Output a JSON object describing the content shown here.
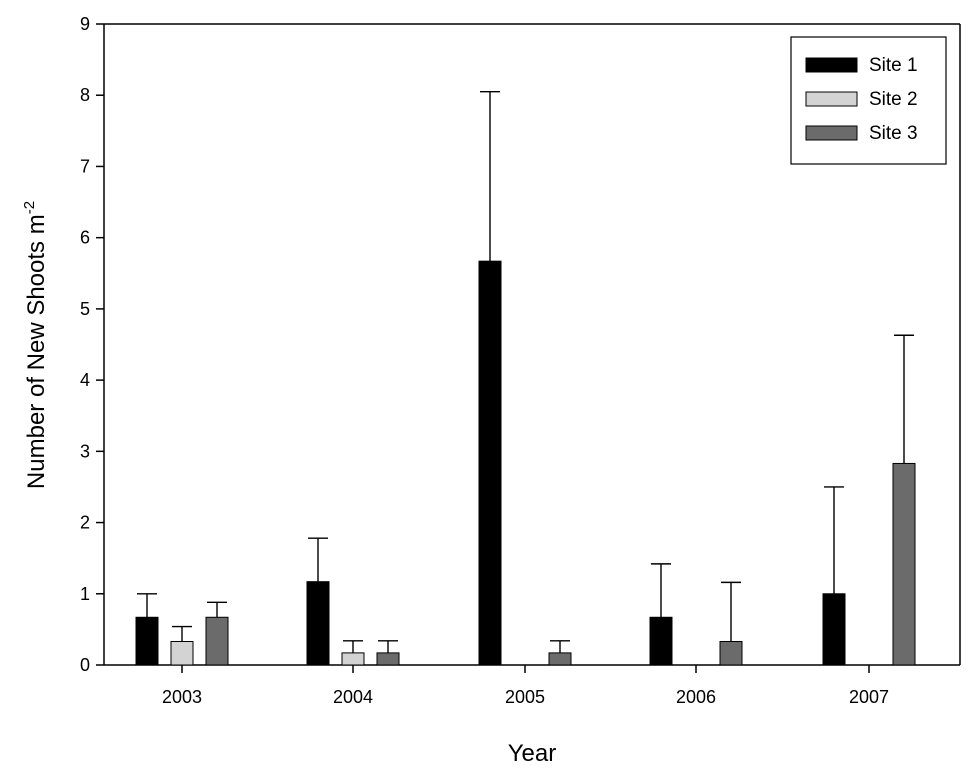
{
  "chart_data": {
    "type": "bar",
    "xlabel": "Year",
    "ylabel": "Number of New Shoots m",
    "ylabel_superscript": "-2",
    "categories": [
      "2003",
      "2004",
      "2005",
      "2006",
      "2007"
    ],
    "ylim": [
      0,
      9
    ],
    "yticks": [
      0,
      1,
      2,
      3,
      4,
      5,
      6,
      7,
      8,
      9
    ],
    "grid": false,
    "legend_position": "top-right",
    "error_bars": "upper",
    "series": [
      {
        "name": "Site 1",
        "color": "#000000",
        "values": [
          0.67,
          1.17,
          5.67,
          0.67,
          1.0
        ],
        "errors": [
          0.33,
          0.61,
          2.38,
          0.75,
          1.5
        ]
      },
      {
        "name": "Site 2",
        "color": "#d3d3d3",
        "values": [
          0.33,
          0.17,
          0,
          0,
          0
        ],
        "errors": [
          0.21,
          0.17,
          0,
          0,
          0
        ]
      },
      {
        "name": "Site 3",
        "color": "#6b6b6b",
        "values": [
          0.67,
          0.17,
          0.17,
          0.33,
          2.83
        ],
        "errors": [
          0.21,
          0.17,
          0.17,
          0.83,
          1.8
        ]
      }
    ]
  }
}
